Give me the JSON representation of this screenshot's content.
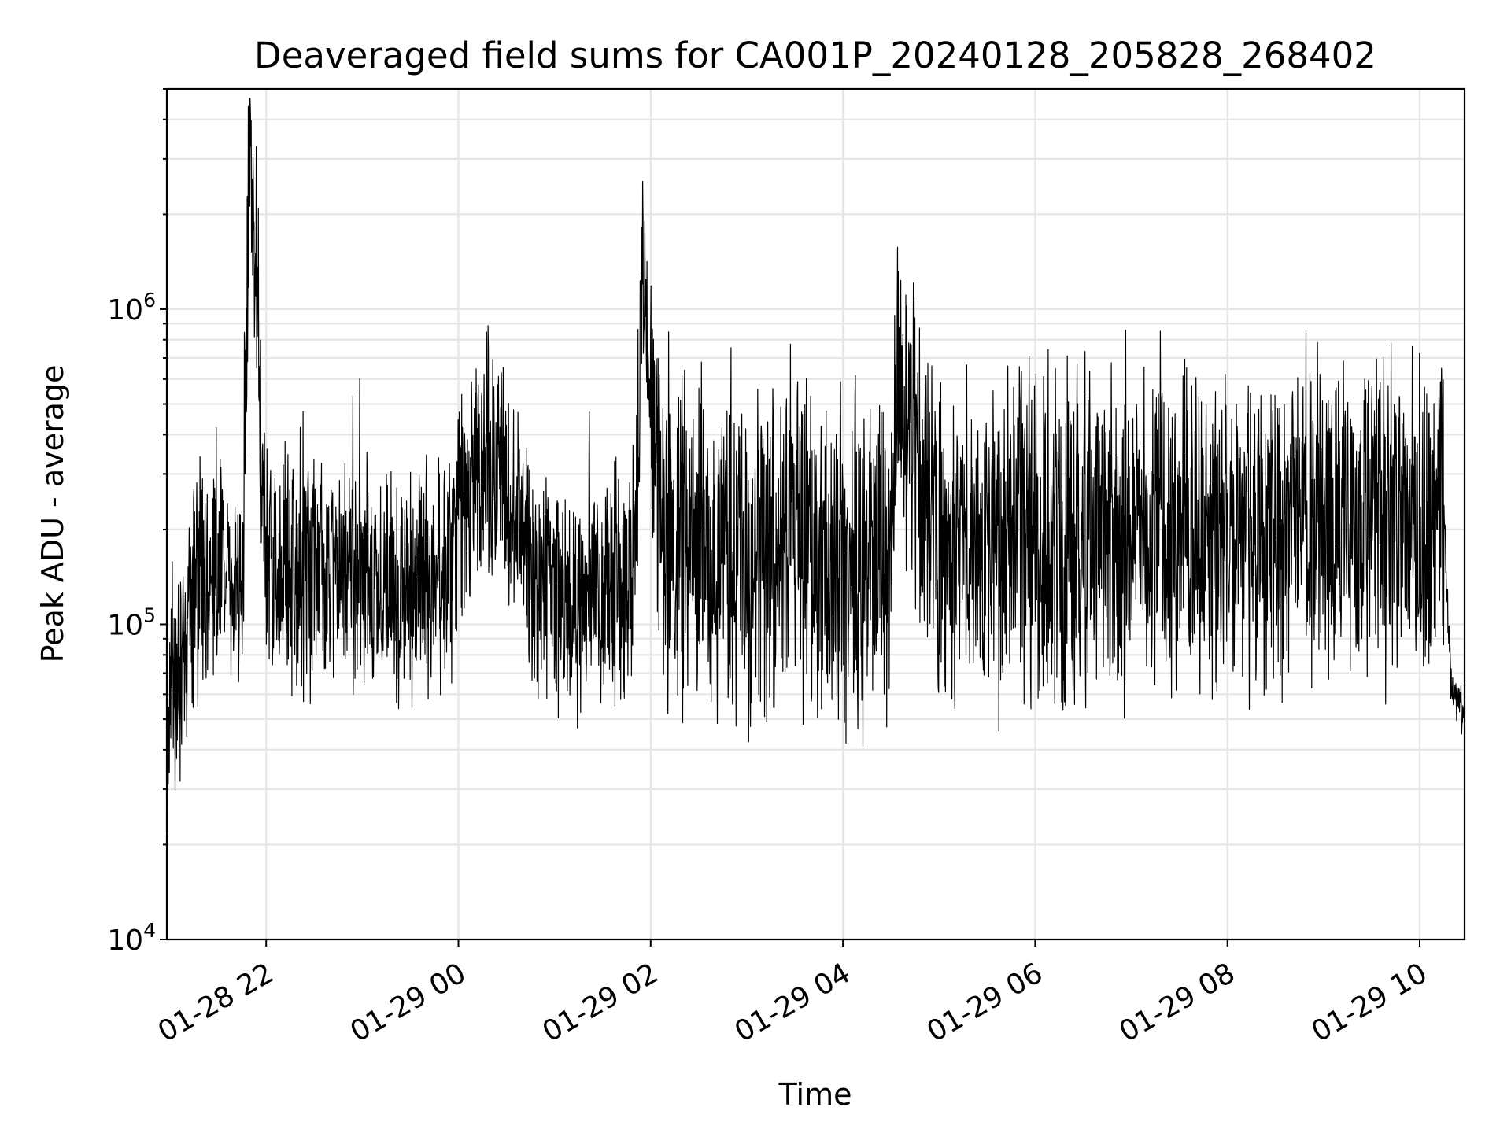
{
  "chart_data": {
    "type": "line",
    "title": "Deaveraged field sums for CA001P_20240128_205828_268402",
    "xlabel": "Time",
    "ylabel": "Peak ADU - average",
    "y_scale": "log",
    "ylim": [
      10000,
      5000000
    ],
    "xlim": [
      "2024-01-28 20:58",
      "2024-01-29 10:28"
    ],
    "x_ticks": [
      {
        "value": "2024-01-28 22:00",
        "label": "01-28 22"
      },
      {
        "value": "2024-01-29 00:00",
        "label": "01-29 00"
      },
      {
        "value": "2024-01-29 02:00",
        "label": "01-29 02"
      },
      {
        "value": "2024-01-29 04:00",
        "label": "01-29 04"
      },
      {
        "value": "2024-01-29 06:00",
        "label": "01-29 06"
      },
      {
        "value": "2024-01-29 08:00",
        "label": "01-29 08"
      },
      {
        "value": "2024-01-29 10:00",
        "label": "01-29 10"
      }
    ],
    "y_ticks": [
      {
        "value": 10000,
        "base": "10",
        "exp": "4"
      },
      {
        "value": 100000,
        "base": "10",
        "exp": "5"
      },
      {
        "value": 1000000,
        "base": "10",
        "exp": "6"
      }
    ],
    "grid": true,
    "line_color": "#000000",
    "series": [
      {
        "x": [
          "2024-01-28 20:58",
          "2024-01-28 21:10",
          "2024-01-28 21:20",
          "2024-01-28 21:30",
          "2024-01-28 21:45",
          "2024-01-28 21:50",
          "2024-01-28 22:00",
          "2024-01-28 22:20",
          "2024-01-28 22:50",
          "2024-01-28 23:20",
          "2024-01-28 23:50",
          "2024-01-29 00:00",
          "2024-01-29 00:15",
          "2024-01-29 00:30",
          "2024-01-29 00:45",
          "2024-01-29 01:00",
          "2024-01-29 01:30",
          "2024-01-29 01:50",
          "2024-01-29 01:55",
          "2024-01-29 02:10",
          "2024-01-29 02:40",
          "2024-01-29 03:00",
          "2024-01-29 03:30",
          "2024-01-29 04:00",
          "2024-01-29 04:30",
          "2024-01-29 04:35",
          "2024-01-29 05:00",
          "2024-01-29 05:30",
          "2024-01-29 06:00",
          "2024-01-29 06:30",
          "2024-01-29 06:55",
          "2024-01-29 07:00",
          "2024-01-29 07:30",
          "2024-01-29 08:00",
          "2024-01-29 08:30",
          "2024-01-29 09:00",
          "2024-01-29 09:20",
          "2024-01-29 09:40",
          "2024-01-29 10:00",
          "2024-01-29 10:15",
          "2024-01-29 10:20",
          "2024-01-29 10:28"
        ],
        "y": [
          50000,
          100000,
          150000,
          160000,
          140000,
          4200000,
          150000,
          140000,
          150000,
          130000,
          140000,
          200000,
          350000,
          250000,
          150000,
          130000,
          120000,
          150000,
          1250000,
          170000,
          180000,
          170000,
          180000,
          160000,
          170000,
          600000,
          170000,
          180000,
          190000,
          200000,
          180000,
          200000,
          210000,
          190000,
          200000,
          220000,
          200000,
          210000,
          220000,
          230000,
          60000,
          50000
        ]
      }
    ]
  }
}
